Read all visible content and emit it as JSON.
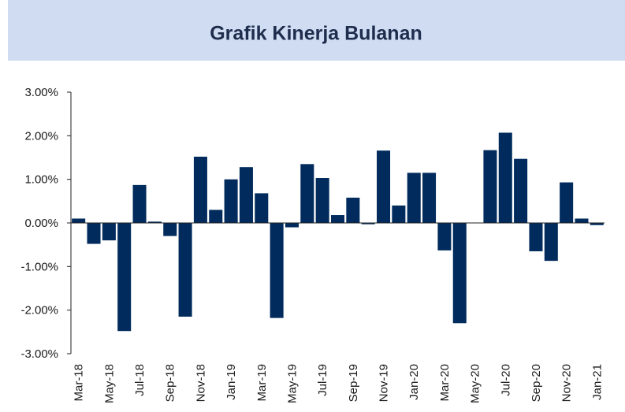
{
  "chart_data": {
    "type": "bar",
    "title": "Grafik Kinerja Bulanan",
    "categories": [
      "Mar-18",
      null,
      "May-18",
      null,
      "Jul-18",
      null,
      "Sep-18",
      null,
      "Nov-18",
      null,
      "Jan-19",
      null,
      "Mar-19",
      null,
      "May-19",
      null,
      "Jul-19",
      null,
      "Sep-19",
      null,
      "Nov-19",
      null,
      "Jan-20",
      null,
      "Mar-20",
      null,
      "May-20",
      null,
      "Jul-20",
      null,
      "Sep-20",
      null,
      "Nov-20",
      null,
      "Jan-21"
    ],
    "values": [
      0.1,
      -0.48,
      -0.4,
      -2.48,
      0.87,
      0.03,
      -0.3,
      -2.15,
      1.52,
      0.3,
      1.0,
      1.28,
      0.68,
      -2.18,
      -0.1,
      1.35,
      1.03,
      0.18,
      0.58,
      -0.03,
      1.66,
      0.4,
      1.15,
      1.15,
      -0.63,
      -2.3,
      0.0,
      1.67,
      2.07,
      1.47,
      -0.65,
      -0.87,
      0.93,
      0.1,
      -0.05
    ],
    "color": "#002b5c",
    "ylim": [
      -3,
      3
    ],
    "yticks": [
      {
        "value": -3,
        "label": "-3.00%"
      },
      {
        "value": -2,
        "label": "-2.00%"
      },
      {
        "value": -1,
        "label": "-1.00%"
      },
      {
        "value": 0,
        "label": "0.00%"
      },
      {
        "value": 1,
        "label": "1.00%"
      },
      {
        "value": 2,
        "label": "2.00%"
      },
      {
        "value": 3,
        "label": "3.00%"
      }
    ],
    "grid": false
  }
}
